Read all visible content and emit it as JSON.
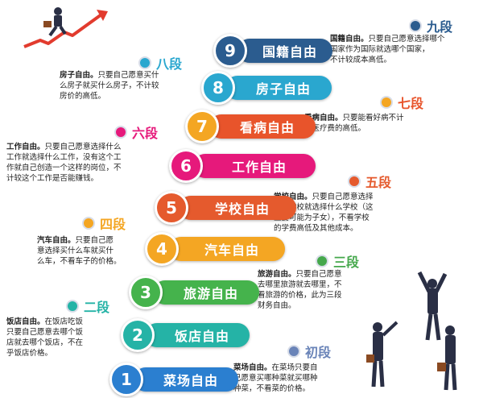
{
  "steps": [
    {
      "num": "1",
      "label": "菜场自由",
      "color": "#2b7fd0",
      "numColor": "#2b7fd0"
    },
    {
      "num": "2",
      "label": "饭店自由",
      "color": "#25b3a6",
      "numColor": "#25b3a6"
    },
    {
      "num": "3",
      "label": "旅游自由",
      "color": "#45b34c",
      "numColor": "#45b34c"
    },
    {
      "num": "4",
      "label": "汽车自由",
      "color": "#f4a623",
      "numColor": "#f4a623"
    },
    {
      "num": "5",
      "label": "学校自由",
      "color": "#e55a2d",
      "numColor": "#e55a2d"
    },
    {
      "num": "6",
      "label": "工作自由",
      "color": "#e6197b",
      "numColor": "#e6197b"
    },
    {
      "num": "7",
      "label": "看病自由",
      "color": "#e8542b",
      "numColor": "#f4a623"
    },
    {
      "num": "8",
      "label": "房子自由",
      "color": "#2aa7cf",
      "numColor": "#2aa7cf"
    },
    {
      "num": "9",
      "label": "国籍自由",
      "color": "#2b5c8f",
      "numColor": "#2b5c8f"
    }
  ],
  "ranks": [
    {
      "label": "初段",
      "color": "#6a84b8"
    },
    {
      "label": "二段",
      "color": "#24b3a6"
    },
    {
      "label": "三段",
      "color": "#45a84c"
    },
    {
      "label": "四段",
      "color": "#f4a623"
    },
    {
      "label": "五段",
      "color": "#e55a2d"
    },
    {
      "label": "六段",
      "color": "#e6197b"
    },
    {
      "label": "七段",
      "color": "#f4a623"
    },
    {
      "label": "八段",
      "color": "#2aa7cf"
    },
    {
      "label": "九段",
      "color": "#2b5c8f"
    }
  ],
  "descriptions": [
    {
      "title": "菜场自由。",
      "lines": [
        "在菜场只要自",
        "己愿意买哪种菜就买哪种",
        "种菜，不看菜的价格。"
      ]
    },
    {
      "title": "饭店自由。",
      "lines": [
        "在饭店吃饭",
        "只要自己愿意去哪个饭",
        "店就去哪个饭店，不在",
        "乎饭店价格。"
      ]
    },
    {
      "title": "旅游自由。",
      "lines": [
        "只要自己愿意",
        "去哪里旅游就去哪里，不",
        "看旅游的价格，此为三段",
        "财务自由。"
      ]
    },
    {
      "title": "汽车自由。",
      "lines": [
        "只要自己愿",
        "意选择买什么车就买什",
        "么车，不看车子的价格。"
      ]
    },
    {
      "title": "学校自由。",
      "lines": [
        "只要自己愿意选择",
        "什么学校就选择什么学校（这",
        "主要可能为子女），不看学校",
        "的学费高低及其他成本。"
      ]
    },
    {
      "title": "工作自由。",
      "lines": [
        "只要自己愿意选择什么",
        "工作就选择什么工作，没有这个工",
        "作就自己创造一个这样的岗位，不",
        "计较这个工作是否能赚钱。"
      ]
    },
    {
      "title": "看病自由。",
      "lines": [
        "只要能看好病不计",
        "较医疗费的高低。"
      ]
    },
    {
      "title": "房子自由。",
      "lines": [
        "只要自己愿意买什",
        "么房子就买什么房子，不计较",
        "房价的高低。"
      ]
    },
    {
      "title": "国籍自由。",
      "lines": [
        "只要自己愿意选择哪个",
        "国家作为国际就选哪个国家，",
        "不计较成本高低。"
      ]
    }
  ]
}
